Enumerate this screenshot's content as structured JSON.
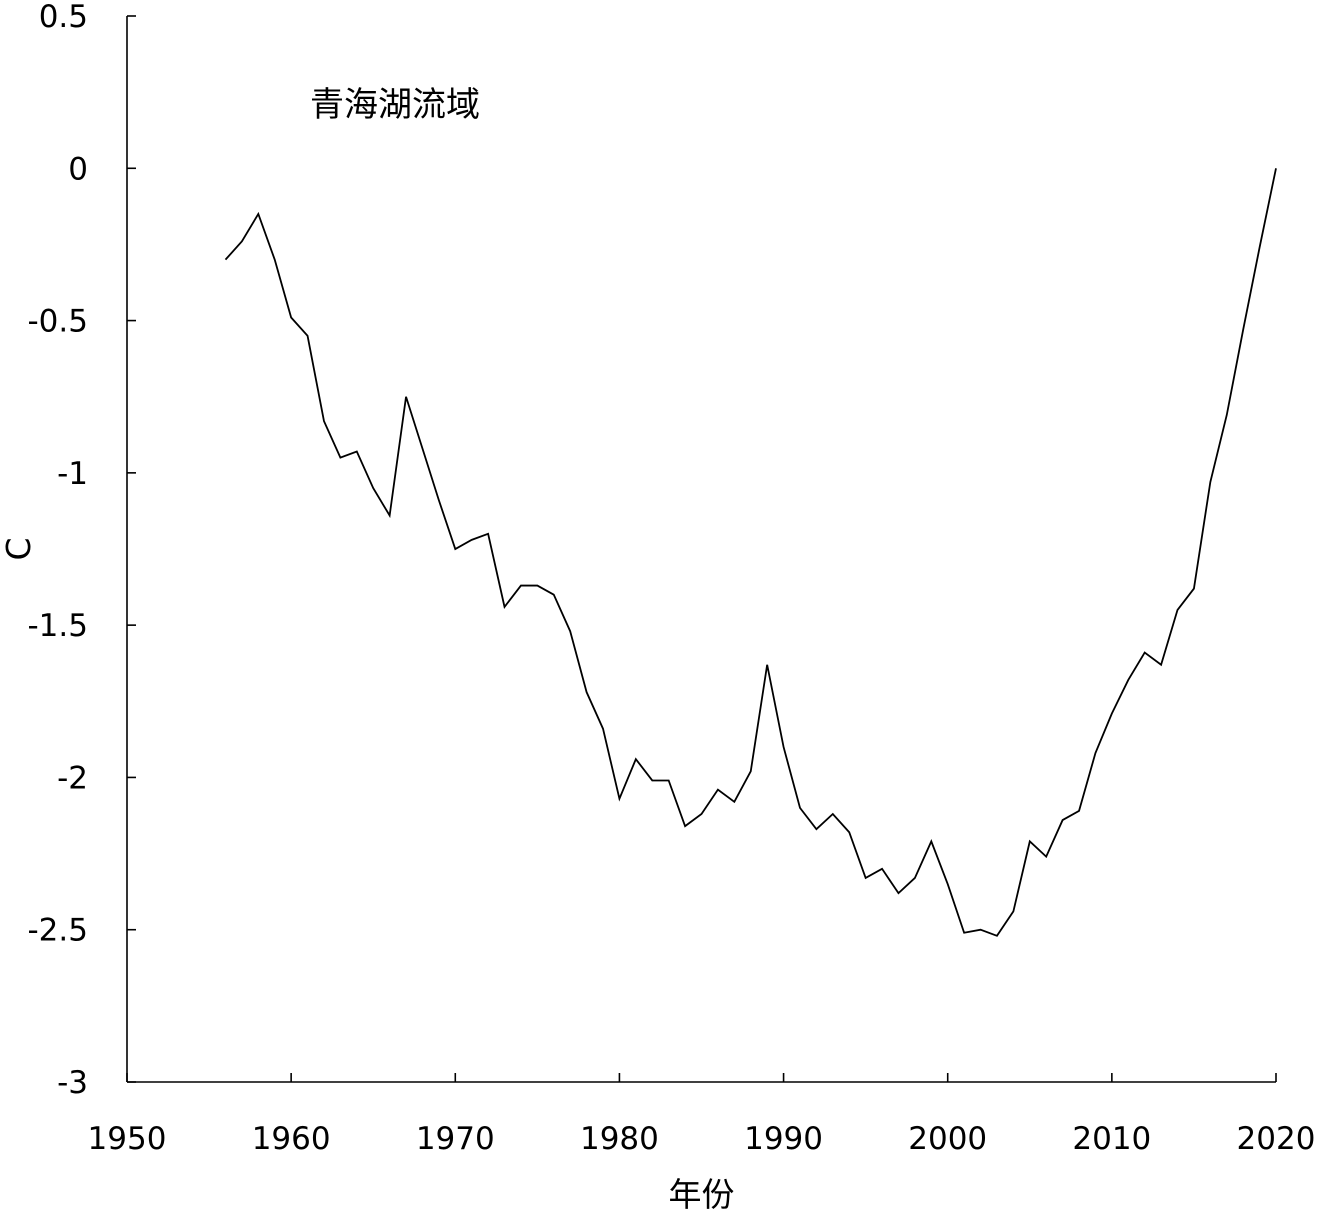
{
  "chart_data": {
    "type": "line",
    "title": "",
    "annotation": "青海湖流域",
    "xlabel": "年份",
    "ylabel": "C",
    "xlim": [
      1950,
      2020
    ],
    "ylim": [
      -3,
      0.5
    ],
    "xticks": [
      "1950",
      "1960",
      "1970",
      "1980",
      "1990",
      "2000",
      "2010",
      "2020"
    ],
    "yticks": [
      "0.5",
      "0",
      "-0.5",
      "-1",
      "-1.5",
      "-2",
      "-2.5",
      "-3"
    ],
    "grid": false,
    "legend": "none",
    "series": [
      {
        "color": "#000000",
        "x": [
          1956,
          1957,
          1958,
          1959,
          1960,
          1961,
          1962,
          1963,
          1964,
          1965,
          1966,
          1967,
          1968,
          1969,
          1970,
          1971,
          1972,
          1973,
          1974,
          1975,
          1976,
          1977,
          1978,
          1979,
          1980,
          1981,
          1982,
          1983,
          1984,
          1985,
          1986,
          1987,
          1988,
          1989,
          1990,
          1991,
          1992,
          1993,
          1994,
          1995,
          1996,
          1997,
          1998,
          1999,
          2000,
          2001,
          2002,
          2003,
          2004,
          2005,
          2006,
          2007,
          2008,
          2009,
          2010,
          2011,
          2012,
          2013,
          2014,
          2015,
          2016,
          2017,
          2018,
          2019,
          2020
        ],
        "values": [
          -0.3,
          -0.24,
          -0.15,
          -0.3,
          -0.49,
          -0.55,
          -0.83,
          -0.95,
          -0.93,
          -1.05,
          -1.14,
          -0.75,
          -0.92,
          -1.09,
          -1.25,
          -1.22,
          -1.2,
          -1.44,
          -1.37,
          -1.37,
          -1.4,
          -1.52,
          -1.72,
          -1.84,
          -2.07,
          -1.94,
          -2.01,
          -2.01,
          -2.16,
          -2.12,
          -2.04,
          -2.08,
          -1.98,
          -1.63,
          -1.9,
          -2.1,
          -2.17,
          -2.12,
          -2.18,
          -2.33,
          -2.3,
          -2.38,
          -2.33,
          -2.21,
          -2.35,
          -2.51,
          -2.5,
          -2.52,
          -2.44,
          -2.21,
          -2.26,
          -2.14,
          -2.11,
          -1.92,
          -1.79,
          -1.68,
          -1.59,
          -1.63,
          -1.45,
          -1.38,
          -1.03,
          -0.81,
          -0.53,
          -0.26,
          0.0
        ]
      }
    ]
  }
}
